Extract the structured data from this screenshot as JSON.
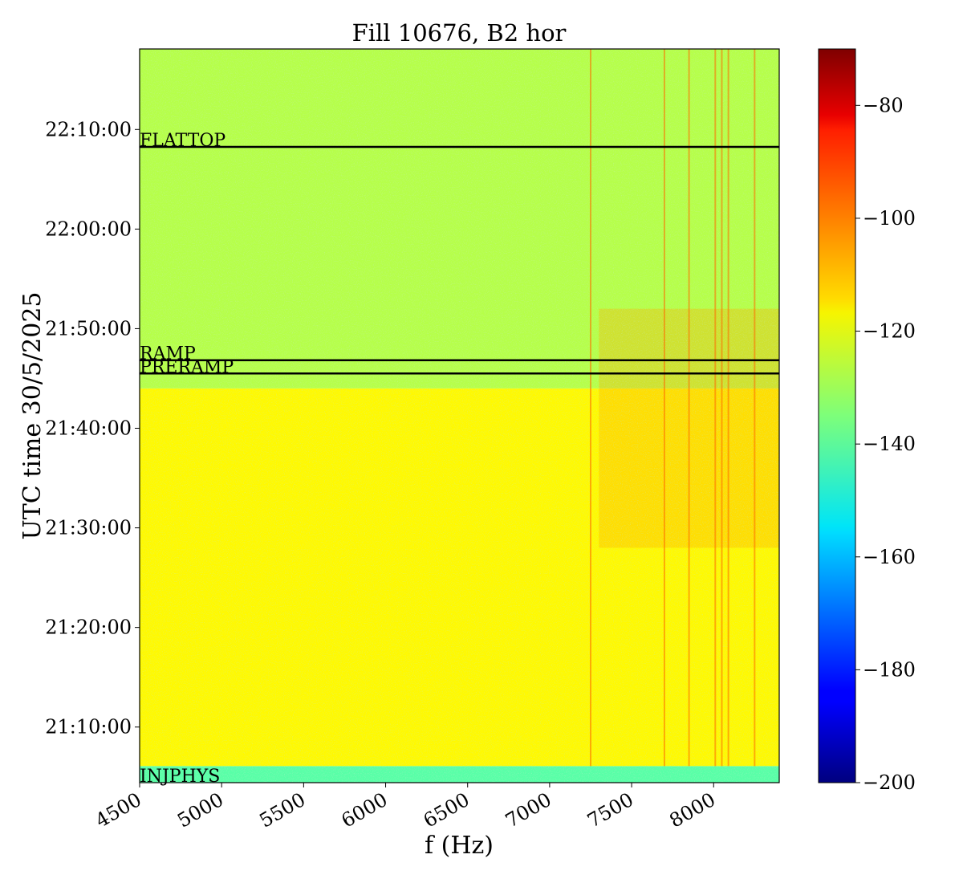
{
  "chart_data": {
    "type": "heatmap",
    "title": "Fill 10676, B2 hor",
    "xlabel": "f (Hz)",
    "ylabel": "UTC time 30/5/2025",
    "xlim": [
      4500,
      8400
    ],
    "ylim_time": [
      "21:04:25",
      "22:18:05"
    ],
    "x_ticks": [
      4500,
      5000,
      5500,
      6000,
      6500,
      7000,
      7500,
      8000
    ],
    "x_tick_labels": [
      "4500",
      "5000",
      "5500",
      "6000",
      "6500",
      "7000",
      "7500",
      "8000"
    ],
    "y_ticks": [
      "21:10:00",
      "21:20:00",
      "21:30:00",
      "21:40:00",
      "21:50:00",
      "22:00:00",
      "22:10:00"
    ],
    "y_tick_labels": [
      "21:10:00",
      "21:20:00",
      "21:30:00",
      "21:40:00",
      "21:50:00",
      "22:00:00",
      "22:10:00"
    ],
    "colorscale": "jet",
    "colorbar": {
      "range": [
        -200,
        -70
      ],
      "ticks": [
        -200,
        -180,
        -160,
        -140,
        -120,
        -100,
        -80
      ],
      "tick_labels": [
        "−200",
        "−180",
        "−160",
        "−140",
        "−120",
        "−100",
        "−80"
      ]
    },
    "phase_lines": [
      {
        "label": "FLATTOP",
        "time": "22:08:15"
      },
      {
        "label": "RAMP",
        "time": "21:46:50"
      },
      {
        "label": "PRERAMP",
        "time": "21:45:30"
      },
      {
        "label": "INJPHYS",
        "time": "21:04:25"
      }
    ],
    "regions": [
      {
        "time_start": "21:04:25",
        "time_end": "21:06:05",
        "level_db": -140
      },
      {
        "time_start": "21:06:05",
        "time_end": "21:44:00",
        "level_db": -118
      },
      {
        "time_start": "21:44:00",
        "time_end": "22:18:05",
        "level_db": -128
      }
    ],
    "spectral_lines_hz": [
      7250,
      7700,
      7850,
      8010,
      8050,
      8090,
      8250
    ],
    "grid": false
  }
}
